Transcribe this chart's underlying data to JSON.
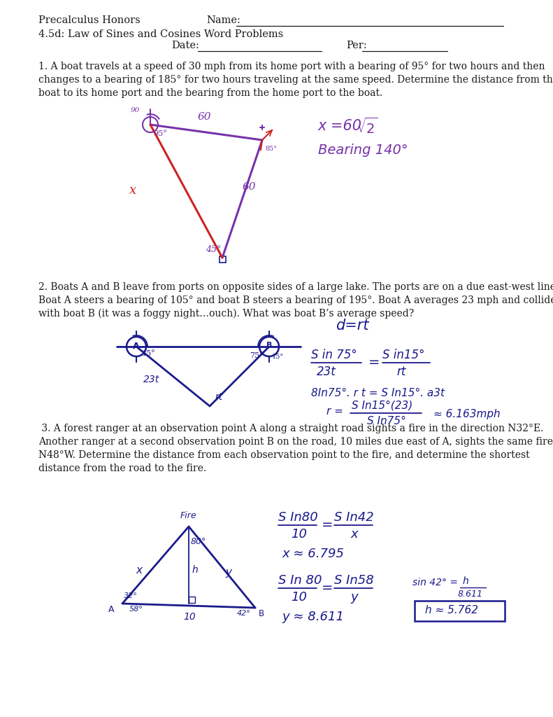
{
  "bg_color": "#ffffff",
  "text_color": "#1a1a1a",
  "blue_color": "#1a1a8c",
  "purple_color": "#7733aa",
  "red_color": "#cc2222",
  "dark_blue": "#1a1a8c",
  "header": {
    "left1": "Precalculus Honors",
    "right1": "Name:",
    "left2": "4.5d: Law of Sines and Cosines Word Problems",
    "date": "Date:",
    "per": "Per:"
  },
  "p1_text": [
    "1. A boat travels at a speed of 30 mph from its home port with a bearing of 95° for two hours and then",
    "changes to a bearing of 185° for two hours traveling at the same speed. Determine the distance from the",
    "boat to its home port and the bearing from the home port to the boat."
  ],
  "p2_text": [
    "2. Boats A and B leave from ports on opposite sides of a large lake. The ports are on a due east-west line.",
    "Boat A steers a bearing of 105° and boat B steers a bearing of 195°. Boat A averages 23 mph and collides",
    "with boat B (it was a foggy night…ouch). What was boat B’s average speed?"
  ],
  "p3_text": [
    " 3. A forest ranger at an observation point A along a straight road sights a fire in the direction N32°E.",
    "Another ranger at a second observation point B on the road, 10 miles due east of A, sights the same fire at",
    "N48°W. Determine the distance from each observation point to the fire, and determine the shortest",
    "distance from the road to the fire."
  ]
}
